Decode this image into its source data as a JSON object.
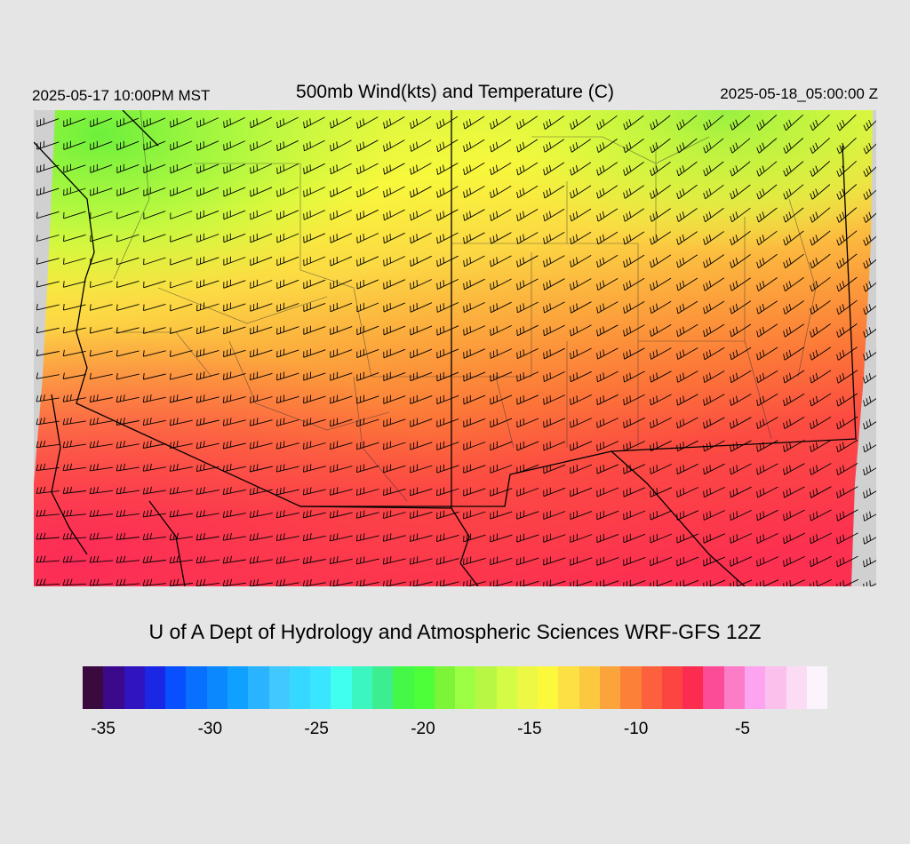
{
  "header": {
    "local_time": "2025-05-17 10:00PM MST",
    "title": "500mb Wind(kts) and Temperature (C)",
    "utc_time": "2025-05-18_05:00:00 Z"
  },
  "credit": "U of A Dept of Hydrology and Atmospheric Sciences WRF-GFS 12Z",
  "colorbar": {
    "colors": [
      "#3a0a3e",
      "#3b0a8c",
      "#3014c0",
      "#1a28e6",
      "#0850ff",
      "#0870ff",
      "#0c88ff",
      "#10a0ff",
      "#2ab4ff",
      "#40c8ff",
      "#36d8ff",
      "#3ae6ff",
      "#40ffee",
      "#3cf6c0",
      "#3cee90",
      "#44f848",
      "#4cff38",
      "#7cf438",
      "#9cff44",
      "#b8f844",
      "#d4fc44",
      "#ecf844",
      "#fcf83c",
      "#fce044",
      "#fcc840",
      "#fca43c",
      "#fc8038",
      "#fc603c",
      "#fc4440",
      "#fc2c50",
      "#fc4c98",
      "#fc7cc8",
      "#fca4f0",
      "#fcc0ec",
      "#fcdcf4",
      "#fcf4fc"
    ],
    "ticks": [
      {
        "label": "-35",
        "frac": 0.0275
      },
      {
        "label": "-30",
        "frac": 0.171
      },
      {
        "label": "-25",
        "frac": 0.314
      },
      {
        "label": "-20",
        "frac": 0.457
      },
      {
        "label": "-15",
        "frac": 0.6
      },
      {
        "label": "-10",
        "frac": 0.743
      },
      {
        "label": "-5",
        "frac": 0.886
      }
    ]
  }
}
